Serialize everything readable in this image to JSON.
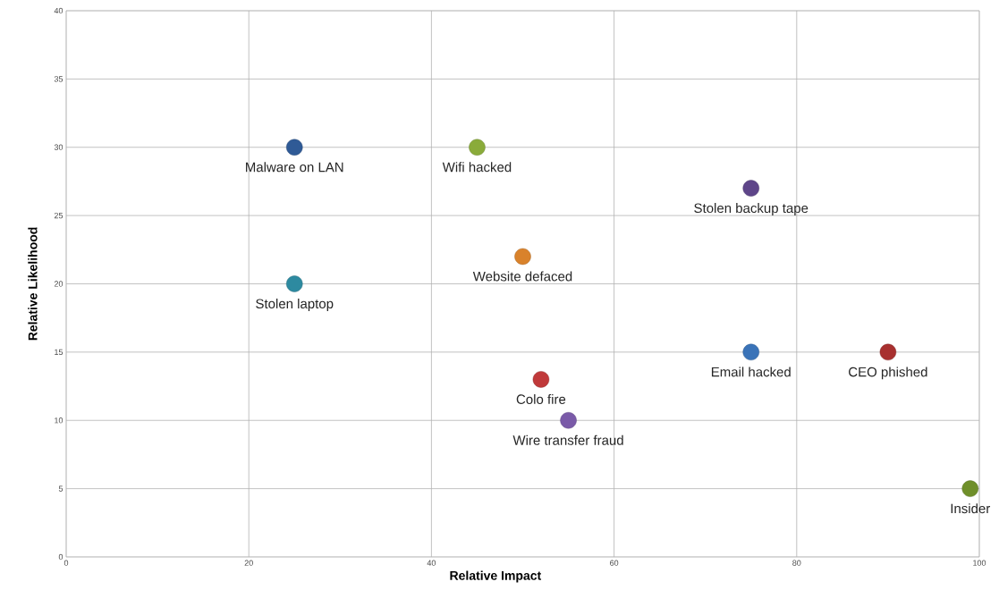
{
  "chart_data": {
    "type": "scatter",
    "xlabel": "Relative Impact",
    "ylabel": "Relative Likelihood",
    "xlim": [
      0,
      100
    ],
    "xticks": [
      0,
      20,
      40,
      60,
      80,
      100
    ],
    "ylim": [
      0,
      40
    ],
    "yticks": [
      0,
      5,
      10,
      15,
      20,
      25,
      30,
      35,
      40
    ],
    "grid": true,
    "marker": "circle",
    "series": [
      {
        "name": "Malware on LAN",
        "color": "#2f5a96",
        "x": [
          25
        ],
        "values": [
          30
        ]
      },
      {
        "name": "Wifi hacked",
        "color": "#8aab3a",
        "x": [
          45
        ],
        "values": [
          30
        ]
      },
      {
        "name": "Stolen backup tape",
        "color": "#5e4589",
        "x": [
          75
        ],
        "values": [
          27
        ]
      },
      {
        "name": "Website defaced",
        "color": "#d9822b",
        "x": [
          50
        ],
        "values": [
          22
        ]
      },
      {
        "name": "Stolen laptop",
        "color": "#2d8aa0",
        "x": [
          25
        ],
        "values": [
          20
        ]
      },
      {
        "name": "Email hacked",
        "color": "#3a73b8",
        "x": [
          75
        ],
        "values": [
          15
        ]
      },
      {
        "name": "CEO phished",
        "color": "#a8302f",
        "x": [
          90
        ],
        "values": [
          15
        ]
      },
      {
        "name": "Colo fire",
        "color": "#c0393a",
        "x": [
          52
        ],
        "values": [
          13
        ]
      },
      {
        "name": "Wire transfer fraud",
        "color": "#7a5aa8",
        "x": [
          55
        ],
        "values": [
          10
        ]
      },
      {
        "name": "Insider",
        "color": "#6f8f2a",
        "x": [
          99
        ],
        "values": [
          5
        ]
      }
    ]
  }
}
